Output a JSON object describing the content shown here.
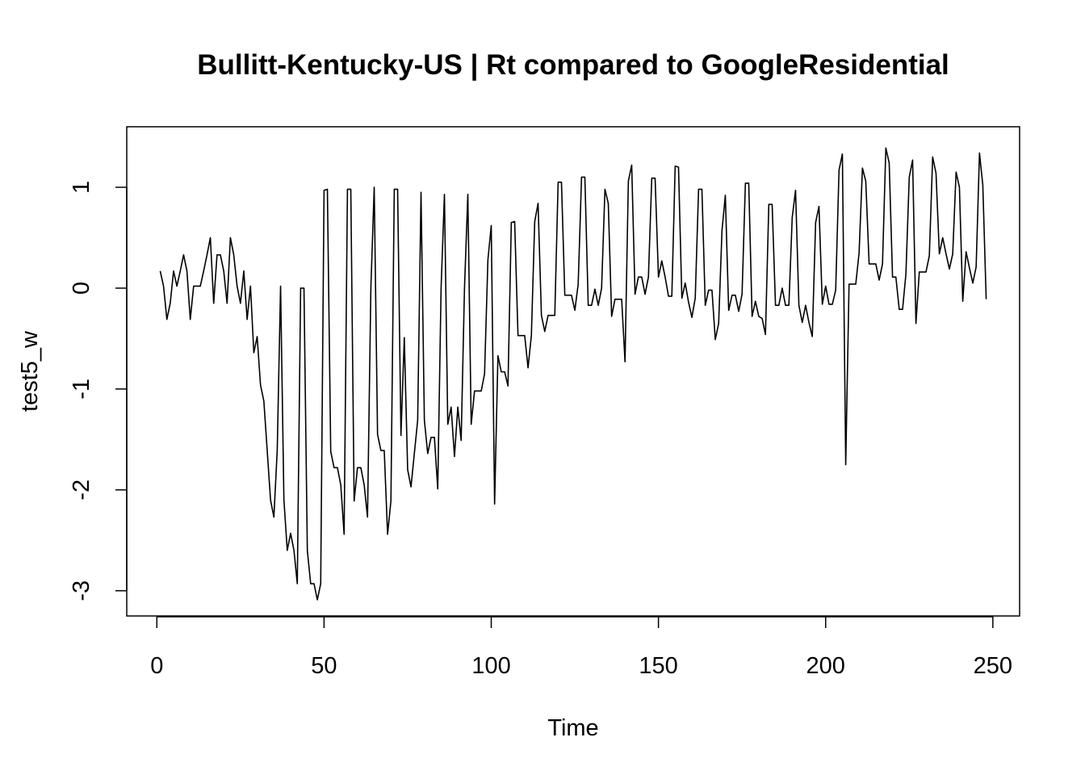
{
  "chart_data": {
    "type": "line",
    "title": "Bullitt-Kentucky-US | Rt compared to GoogleResidential",
    "xlabel": "Time",
    "ylabel": "test5_w",
    "xlim": [
      -9,
      258
    ],
    "ylim": [
      -3.25,
      1.6
    ],
    "x_ticks": [
      0,
      50,
      100,
      150,
      200,
      250
    ],
    "x_tick_labels": [
      "0",
      "50",
      "100",
      "150",
      "200",
      "250"
    ],
    "y_ticks": [
      -3,
      -2,
      -1,
      0,
      1
    ],
    "y_tick_labels": [
      "-3",
      "-2",
      "-1",
      "0",
      "1"
    ],
    "grid": false,
    "legend": "none",
    "x_start": 1,
    "series": [
      {
        "values": [
          0.17,
          0.02,
          -0.31,
          -0.15,
          0.17,
          0.02,
          0.17,
          0.33,
          0.17,
          -0.31,
          0.02,
          0.02,
          0.02,
          0.17,
          0.33,
          0.5,
          -0.15,
          0.33,
          0.33,
          0.17,
          -0.15,
          0.5,
          0.33,
          0.02,
          -0.15,
          0.17,
          -0.31,
          0.02,
          -0.64,
          -0.48,
          -0.96,
          -1.12,
          -1.61,
          -2.1,
          -2.27,
          -1.61,
          0.02,
          -2.1,
          -2.6,
          -2.43,
          -2.6,
          -2.93,
          0.0,
          0.0,
          -2.6,
          -2.93,
          -2.93,
          -3.09,
          -2.93,
          0.97,
          0.98,
          -1.62,
          -1.78,
          -1.78,
          -1.95,
          -2.44,
          0.98,
          0.98,
          -2.11,
          -1.78,
          -1.78,
          -1.95,
          -2.27,
          0.0,
          1.0,
          -1.45,
          -1.61,
          -1.61,
          -2.44,
          -2.11,
          0.98,
          0.98,
          -1.46,
          -0.49,
          -1.8,
          -1.97,
          -1.64,
          -1.31,
          0.95,
          -1.31,
          -1.64,
          -1.48,
          -1.48,
          -1.99,
          0.0,
          0.93,
          -1.35,
          -1.18,
          -1.67,
          -1.18,
          -1.51,
          0.0,
          0.93,
          -1.35,
          -1.02,
          -1.02,
          -1.02,
          -0.85,
          0.28,
          0.62,
          -2.14,
          -0.67,
          -0.83,
          -0.83,
          -0.97,
          0.65,
          0.66,
          -0.47,
          -0.47,
          -0.47,
          -0.79,
          -0.47,
          0.66,
          0.84,
          -0.27,
          -0.43,
          -0.27,
          -0.27,
          -0.27,
          1.05,
          1.05,
          -0.07,
          -0.07,
          -0.07,
          -0.22,
          0.04,
          1.1,
          1.1,
          -0.17,
          -0.17,
          -0.01,
          -0.17,
          0.0,
          0.98,
          0.84,
          -0.28,
          -0.11,
          -0.11,
          -0.11,
          -0.73,
          1.06,
          1.22,
          -0.06,
          0.11,
          0.11,
          -0.06,
          0.11,
          1.09,
          1.09,
          0.11,
          0.27,
          0.11,
          -0.08,
          -0.08,
          1.21,
          1.2,
          -0.1,
          0.05,
          -0.14,
          -0.29,
          -0.1,
          0.98,
          0.98,
          -0.17,
          -0.02,
          -0.02,
          -0.51,
          -0.35,
          0.57,
          0.92,
          -0.22,
          -0.07,
          -0.07,
          -0.23,
          -0.06,
          1.04,
          1.04,
          -0.28,
          -0.13,
          -0.28,
          -0.3,
          -0.46,
          0.83,
          0.83,
          -0.17,
          -0.17,
          0.0,
          -0.17,
          -0.17,
          0.7,
          0.97,
          -0.17,
          -0.34,
          -0.17,
          -0.34,
          -0.48,
          0.65,
          0.81,
          -0.16,
          0.02,
          -0.16,
          -0.16,
          -0.02,
          1.17,
          1.33,
          -1.75,
          0.04,
          0.04,
          0.04,
          0.35,
          1.19,
          1.06,
          0.24,
          0.24,
          0.24,
          0.08,
          0.24,
          1.39,
          1.24,
          0.11,
          0.11,
          -0.21,
          -0.21,
          0.14,
          1.1,
          1.27,
          -0.35,
          0.16,
          0.16,
          0.16,
          0.32,
          1.3,
          1.14,
          0.34,
          0.5,
          0.34,
          0.19,
          0.34,
          1.15,
          1.0,
          -0.13,
          0.36,
          0.2,
          0.05,
          0.21,
          1.34,
          1.02,
          -0.11
        ]
      }
    ]
  }
}
